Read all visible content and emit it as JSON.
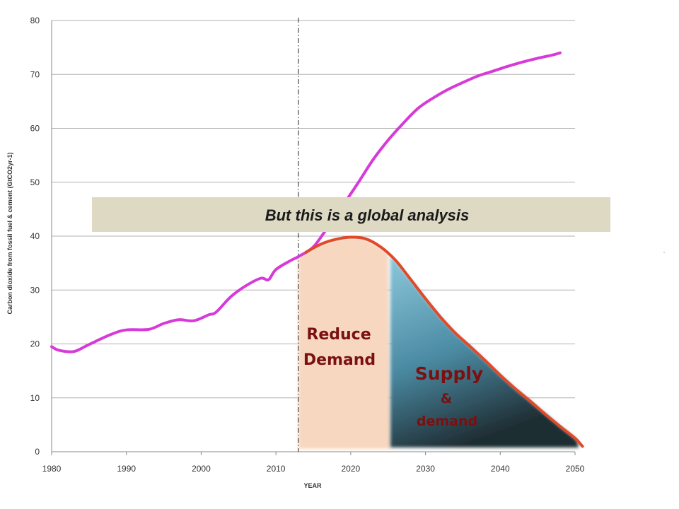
{
  "chart_data": {
    "type": "line",
    "xlabel": "YEAR",
    "ylabel": "Carbon dioxide from fossil fuel & cement (GtCO2yr-1)",
    "xlim": [
      1980,
      2050
    ],
    "ylim": [
      0,
      80
    ],
    "x_ticks": [
      "1980",
      "1990",
      "2000",
      "2010",
      "2020",
      "2030",
      "2040",
      "2050"
    ],
    "y_ticks": [
      "0",
      "10",
      "20",
      "30",
      "40",
      "50",
      "60",
      "70",
      "80"
    ],
    "grid": true,
    "marker_year": 2013,
    "series": [
      {
        "color": "#d63ad8",
        "x": [
          1980,
          1981,
          1983,
          1985,
          1988,
          1990,
          1993,
          1995,
          1997,
          1999,
          2001,
          2002,
          2004,
          2006,
          2008,
          2009,
          2010,
          2012,
          2013,
          2015,
          2017,
          2019,
          2021,
          2023,
          2025,
          2027,
          2029,
          2031,
          2033,
          2035,
          2037,
          2039,
          2041,
          2043,
          2045,
          2047,
          2048
        ],
        "values": [
          19.5,
          18.8,
          18.6,
          19.9,
          21.8,
          22.6,
          22.7,
          23.8,
          24.5,
          24.3,
          25.4,
          25.9,
          28.8,
          30.8,
          32.2,
          31.9,
          33.8,
          35.5,
          36.2,
          38.0,
          41.8,
          45.8,
          49.9,
          54.2,
          57.8,
          60.9,
          63.7,
          65.6,
          67.2,
          68.5,
          69.7,
          70.6,
          71.5,
          72.3,
          73.0,
          73.6,
          74.0
        ]
      },
      {
        "color": "#e04a2a",
        "x": [
          2014,
          2016,
          2018,
          2020,
          2022,
          2024,
          2026,
          2028,
          2030,
          2032,
          2034,
          2036,
          2038,
          2040,
          2042,
          2044,
          2046,
          2048,
          2050,
          2051
        ],
        "values": [
          37.0,
          38.5,
          39.4,
          39.8,
          39.5,
          38.0,
          35.5,
          32.0,
          28.4,
          25.0,
          22.0,
          19.5,
          16.9,
          14.2,
          11.7,
          9.4,
          7.0,
          4.7,
          2.5,
          1.0
        ]
      }
    ],
    "annotations": {
      "banner": "But this is a global analysis",
      "reduce_line1": "Reduce",
      "reduce_line2": "Demand",
      "supply": "Supply",
      "amp": "&",
      "demand": "demand"
    },
    "colors": {
      "grid": "#b0b0b0",
      "axis": "#8a8a8a",
      "reduce_fill": "#f7d7bf",
      "supply_fill_top": "#8cc8dc",
      "supply_fill_bottom": "#1f2d33",
      "banner_fill": "#ddd9c3",
      "label_red": "#7a1010"
    }
  }
}
